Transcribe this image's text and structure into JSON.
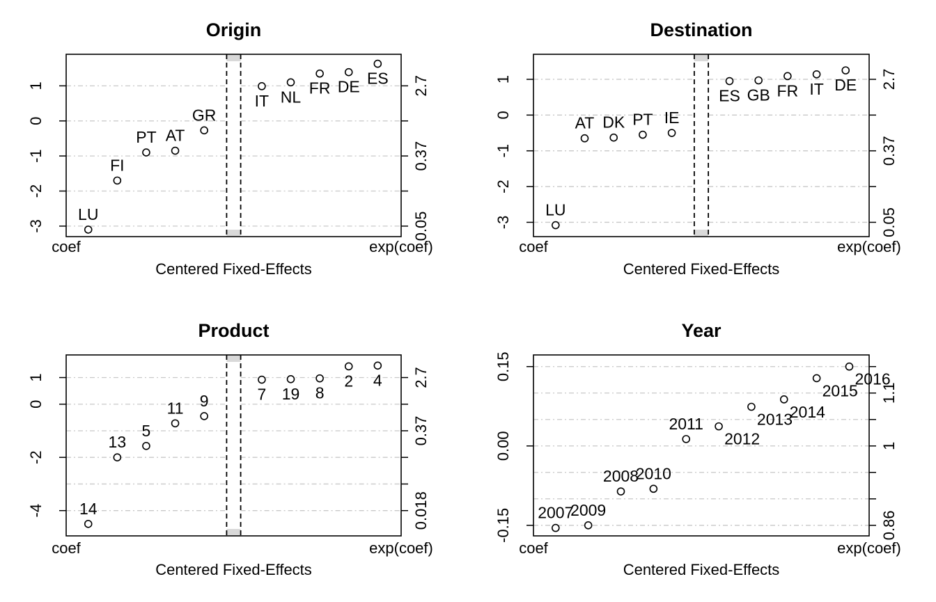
{
  "figure": {
    "xlabel": "Centered Fixed-Effects",
    "left_corner_label": "coef",
    "right_corner_label": "exp(coef)"
  },
  "chart_data": [
    {
      "type": "scatter",
      "title": "Origin",
      "xlabel": "Centered Fixed-Effects",
      "ylim": [
        -3.3,
        1.9
      ],
      "y_ticks": [
        1,
        0,
        -1,
        -2,
        -3
      ],
      "y_tick_labels": [
        "1",
        "0",
        "-1",
        "-2",
        "-3"
      ],
      "right_ticks": [
        1,
        0,
        -1,
        -2,
        -3
      ],
      "right_tick_labels": [
        {
          "value": 1,
          "label": "2.7"
        },
        {
          "value": -1,
          "label": "0.37"
        },
        {
          "value": -3,
          "label": "0.05"
        }
      ],
      "grid": true,
      "gridlines": [
        1,
        0,
        -1,
        -2,
        -3
      ],
      "separator_gap": true,
      "left_points": [
        {
          "label": "LU",
          "value": -3.1
        },
        {
          "label": "FI",
          "value": -1.7
        },
        {
          "label": "PT",
          "value": -0.9
        },
        {
          "label": "AT",
          "value": -0.85
        },
        {
          "label": "GR",
          "value": -0.27
        }
      ],
      "right_points": [
        {
          "label": "IT",
          "value": 0.99
        },
        {
          "label": "NL",
          "value": 1.1
        },
        {
          "label": "FR",
          "value": 1.35
        },
        {
          "label": "DE",
          "value": 1.39
        },
        {
          "label": "ES",
          "value": 1.63
        }
      ]
    },
    {
      "type": "scatter",
      "title": "Destination",
      "xlabel": "Centered Fixed-Effects",
      "ylim": [
        -3.4,
        1.7
      ],
      "y_ticks": [
        1,
        0,
        -1,
        -2,
        -3
      ],
      "y_tick_labels": [
        "1",
        "0",
        "-1",
        "-2",
        "-3"
      ],
      "right_ticks": [
        1,
        0,
        -1,
        -2,
        -3
      ],
      "right_tick_labels": [
        {
          "value": 1,
          "label": "2.7"
        },
        {
          "value": -1,
          "label": "0.37"
        },
        {
          "value": -3,
          "label": "0.05"
        }
      ],
      "grid": true,
      "gridlines": [
        1,
        0,
        -1,
        -2,
        -3
      ],
      "separator_gap": true,
      "left_points": [
        {
          "label": "LU",
          "value": -3.08
        },
        {
          "label": "AT",
          "value": -0.65
        },
        {
          "label": "DK",
          "value": -0.63
        },
        {
          "label": "PT",
          "value": -0.55
        },
        {
          "label": "IE",
          "value": -0.5
        }
      ],
      "right_points": [
        {
          "label": "ES",
          "value": 0.95
        },
        {
          "label": "GB",
          "value": 0.97
        },
        {
          "label": "FR",
          "value": 1.09
        },
        {
          "label": "IT",
          "value": 1.14
        },
        {
          "label": "DE",
          "value": 1.25
        }
      ]
    },
    {
      "type": "scatter",
      "title": "Product",
      "xlabel": "Centered Fixed-Effects",
      "ylim": [
        -4.95,
        1.85
      ],
      "y_ticks": [
        1,
        0,
        -2,
        -4
      ],
      "y_tick_labels": [
        "1",
        "0",
        "-2",
        "-4"
      ],
      "right_ticks": [
        1,
        0,
        -1,
        -2,
        -3,
        -4
      ],
      "right_tick_labels": [
        {
          "value": 1,
          "label": "2.7"
        },
        {
          "value": -1,
          "label": "0.37"
        },
        {
          "value": -4,
          "label": "0.018"
        }
      ],
      "grid": true,
      "gridlines": [
        1,
        0,
        -1,
        -2,
        -3,
        -4
      ],
      "separator_gap": true,
      "left_points": [
        {
          "label": "14",
          "value": -4.5
        },
        {
          "label": "13",
          "value": -2.0
        },
        {
          "label": "5",
          "value": -1.57
        },
        {
          "label": "11",
          "value": -0.72
        },
        {
          "label": "9",
          "value": -0.45
        }
      ],
      "right_points": [
        {
          "label": "7",
          "value": 0.92
        },
        {
          "label": "19",
          "value": 0.94
        },
        {
          "label": "8",
          "value": 0.97
        },
        {
          "label": "2",
          "value": 1.42
        },
        {
          "label": "4",
          "value": 1.45
        }
      ]
    },
    {
      "type": "scatter",
      "title": "Year",
      "xlabel": "Centered Fixed-Effects",
      "ylim": [
        -0.17,
        0.172
      ],
      "y_ticks": [
        0.15,
        0.0,
        -0.15
      ],
      "y_tick_labels": [
        "0.15",
        "0.00",
        "-0.15"
      ],
      "right_ticks": [
        0.15,
        0.1,
        0.05,
        0.0,
        -0.05,
        -0.1,
        -0.15
      ],
      "right_tick_labels": [
        {
          "value": 0.1,
          "label": "1.1"
        },
        {
          "value": 0.0,
          "label": "1"
        },
        {
          "value": -0.15,
          "label": "0.86"
        }
      ],
      "grid": true,
      "gridlines": [
        0.15,
        0.1,
        0.05,
        0.0,
        -0.05,
        -0.1,
        -0.15
      ],
      "separator_gap": false,
      "points": [
        {
          "label": "2007",
          "value": -0.155
        },
        {
          "label": "2009",
          "value": -0.15
        },
        {
          "label": "2008",
          "value": -0.086
        },
        {
          "label": "2010",
          "value": -0.081
        },
        {
          "label": "2011",
          "value": 0.013
        },
        {
          "label": "2012",
          "value": 0.037
        },
        {
          "label": "2013",
          "value": 0.074
        },
        {
          "label": "2014",
          "value": 0.088
        },
        {
          "label": "2015",
          "value": 0.128
        },
        {
          "label": "2016",
          "value": 0.15
        }
      ]
    }
  ]
}
